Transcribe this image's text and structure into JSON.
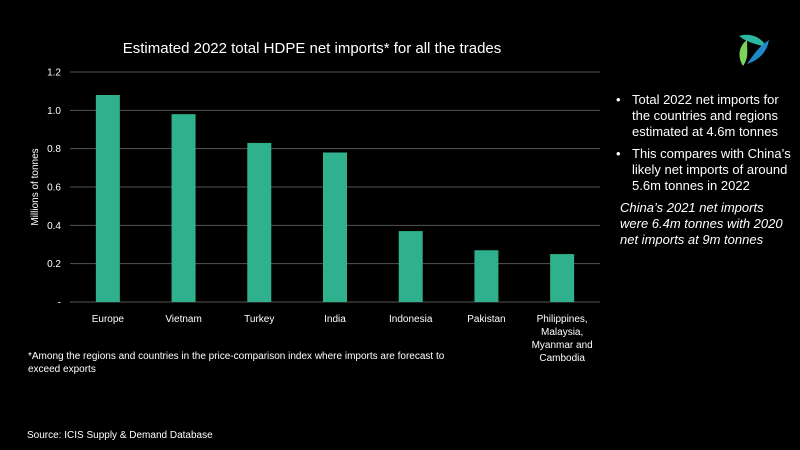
{
  "chart_data": {
    "type": "bar",
    "title": "Estimated 2022 total HDPE net imports* for all the trades",
    "xlabel": "",
    "ylabel": "Millions of tonnes",
    "categories": [
      "Europe",
      "Vietnam",
      "Turkey",
      "India",
      "Indonesia",
      "Pakistan",
      "Philippines, Malaysia, Myanmar and Cambodia"
    ],
    "category_label_lines": [
      [
        "Europe"
      ],
      [
        "Vietnam"
      ],
      [
        "Turkey"
      ],
      [
        "India"
      ],
      [
        "Indonesia"
      ],
      [
        "Pakistan"
      ],
      [
        "Philippines,",
        "Malaysia,",
        "Myanmar and",
        "Cambodia"
      ]
    ],
    "values": [
      1.08,
      0.98,
      0.83,
      0.78,
      0.37,
      0.27,
      0.25
    ],
    "ylim": [
      0,
      1.2
    ],
    "yticks": [
      0,
      0.2,
      0.4,
      0.6,
      0.8,
      1.0,
      1.2
    ],
    "ytick_labels": [
      "-",
      "0.2",
      "0.4",
      "0.6",
      "0.8",
      "1.0",
      "1.2"
    ],
    "grid": true,
    "bar_color": "#2eb18c",
    "grid_color": "#555555"
  },
  "footnote": "*Among the regions and countries in the price-comparison index where imports are forecast to exceed exports",
  "source": "Source: ICIS Supply & Demand Database",
  "side_panel": {
    "bullets": [
      "Total 2022 net imports for the countries and regions estimated at 4.6m tonnes",
      "This compares with China’s likely net imports of around 5.6m tonnes in 2022"
    ],
    "bullet_symbol": "•",
    "note": "China’s 2021 net imports were 6.4m tonnes with 2020 net imports at 9m tonnes"
  },
  "logo": {
    "icon": "icis-logo-icon",
    "colors": [
      "#2db7a0",
      "#1e88c9",
      "#7dd35a"
    ]
  }
}
